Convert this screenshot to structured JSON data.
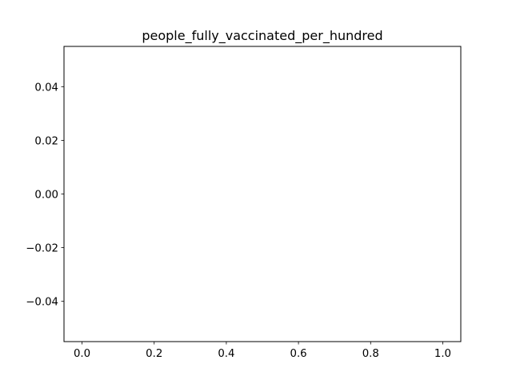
{
  "chart_data": {
    "type": "line",
    "title": "people_fully_vaccinated_per_hundred",
    "xlabel": "",
    "ylabel": "",
    "xlim": [
      -0.05,
      1.05
    ],
    "ylim": [
      -0.055,
      0.055
    ],
    "x_ticks": [
      0.0,
      0.2,
      0.4,
      0.6,
      0.8,
      1.0
    ],
    "x_tick_labels": [
      "0.0",
      "0.2",
      "0.4",
      "0.6",
      "0.8",
      "1.0"
    ],
    "y_ticks": [
      0.04,
      0.02,
      0.0,
      -0.02,
      -0.04
    ],
    "y_tick_labels": [
      "0.04",
      "0.02",
      "0.00",
      "−0.02",
      "−0.04"
    ],
    "series": [],
    "grid": false,
    "legend": false
  }
}
